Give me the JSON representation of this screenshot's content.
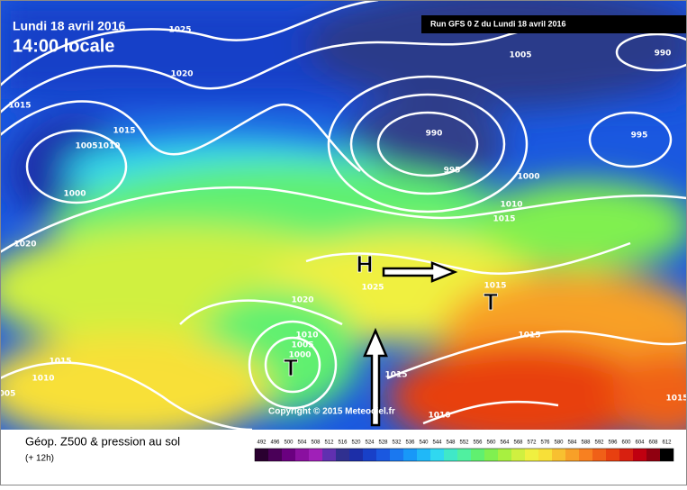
{
  "header": {
    "date": "Lundi 18 avril 2016",
    "time": "14:00 locale",
    "run": "Run GFS 0 Z du Lundi 18 avril 2016"
  },
  "isobar_labels": [
    "1025",
    "1020",
    "1015",
    "1015",
    "1005",
    "1010",
    "1000",
    "990",
    "995",
    "1005",
    "990",
    "995",
    "1000",
    "1010",
    "1015",
    "1020",
    "1025",
    "1020",
    "1015",
    "1015",
    "1010",
    "1005",
    "1000",
    "1015",
    "1010",
    "1015",
    "1010",
    "005",
    "1015"
  ],
  "pressure_centers": [
    "H",
    "T",
    "T"
  ],
  "copyright": "Copyright © 2015 Meteociel.fr",
  "footer": {
    "title": "Géop. Z500 & pression au sol",
    "subtitle": "(+ 12h)"
  },
  "colorbar": {
    "ticks": [
      492,
      496,
      500,
      504,
      508,
      512,
      516,
      520,
      524,
      528,
      532,
      536,
      540,
      544,
      548,
      552,
      556,
      560,
      564,
      568,
      572,
      576,
      580,
      584,
      588,
      592,
      596,
      600,
      604,
      608,
      612
    ],
    "colors": [
      "#2a0030",
      "#4a0058",
      "#6a0080",
      "#8a10a0",
      "#a020b8",
      "#6030b0",
      "#303090",
      "#1c2ea8",
      "#1840c8",
      "#1a58e0",
      "#1a78f0",
      "#1898f8",
      "#20b8f8",
      "#30d8f0",
      "#40e8c8",
      "#50f0a0",
      "#60f070",
      "#80f050",
      "#a8f040",
      "#d0f040",
      "#f0f040",
      "#f8e038",
      "#f8c030",
      "#f8a028",
      "#f88020",
      "#f06018",
      "#e84010",
      "#d82010",
      "#c00010",
      "#900010",
      "#000000"
    ]
  }
}
